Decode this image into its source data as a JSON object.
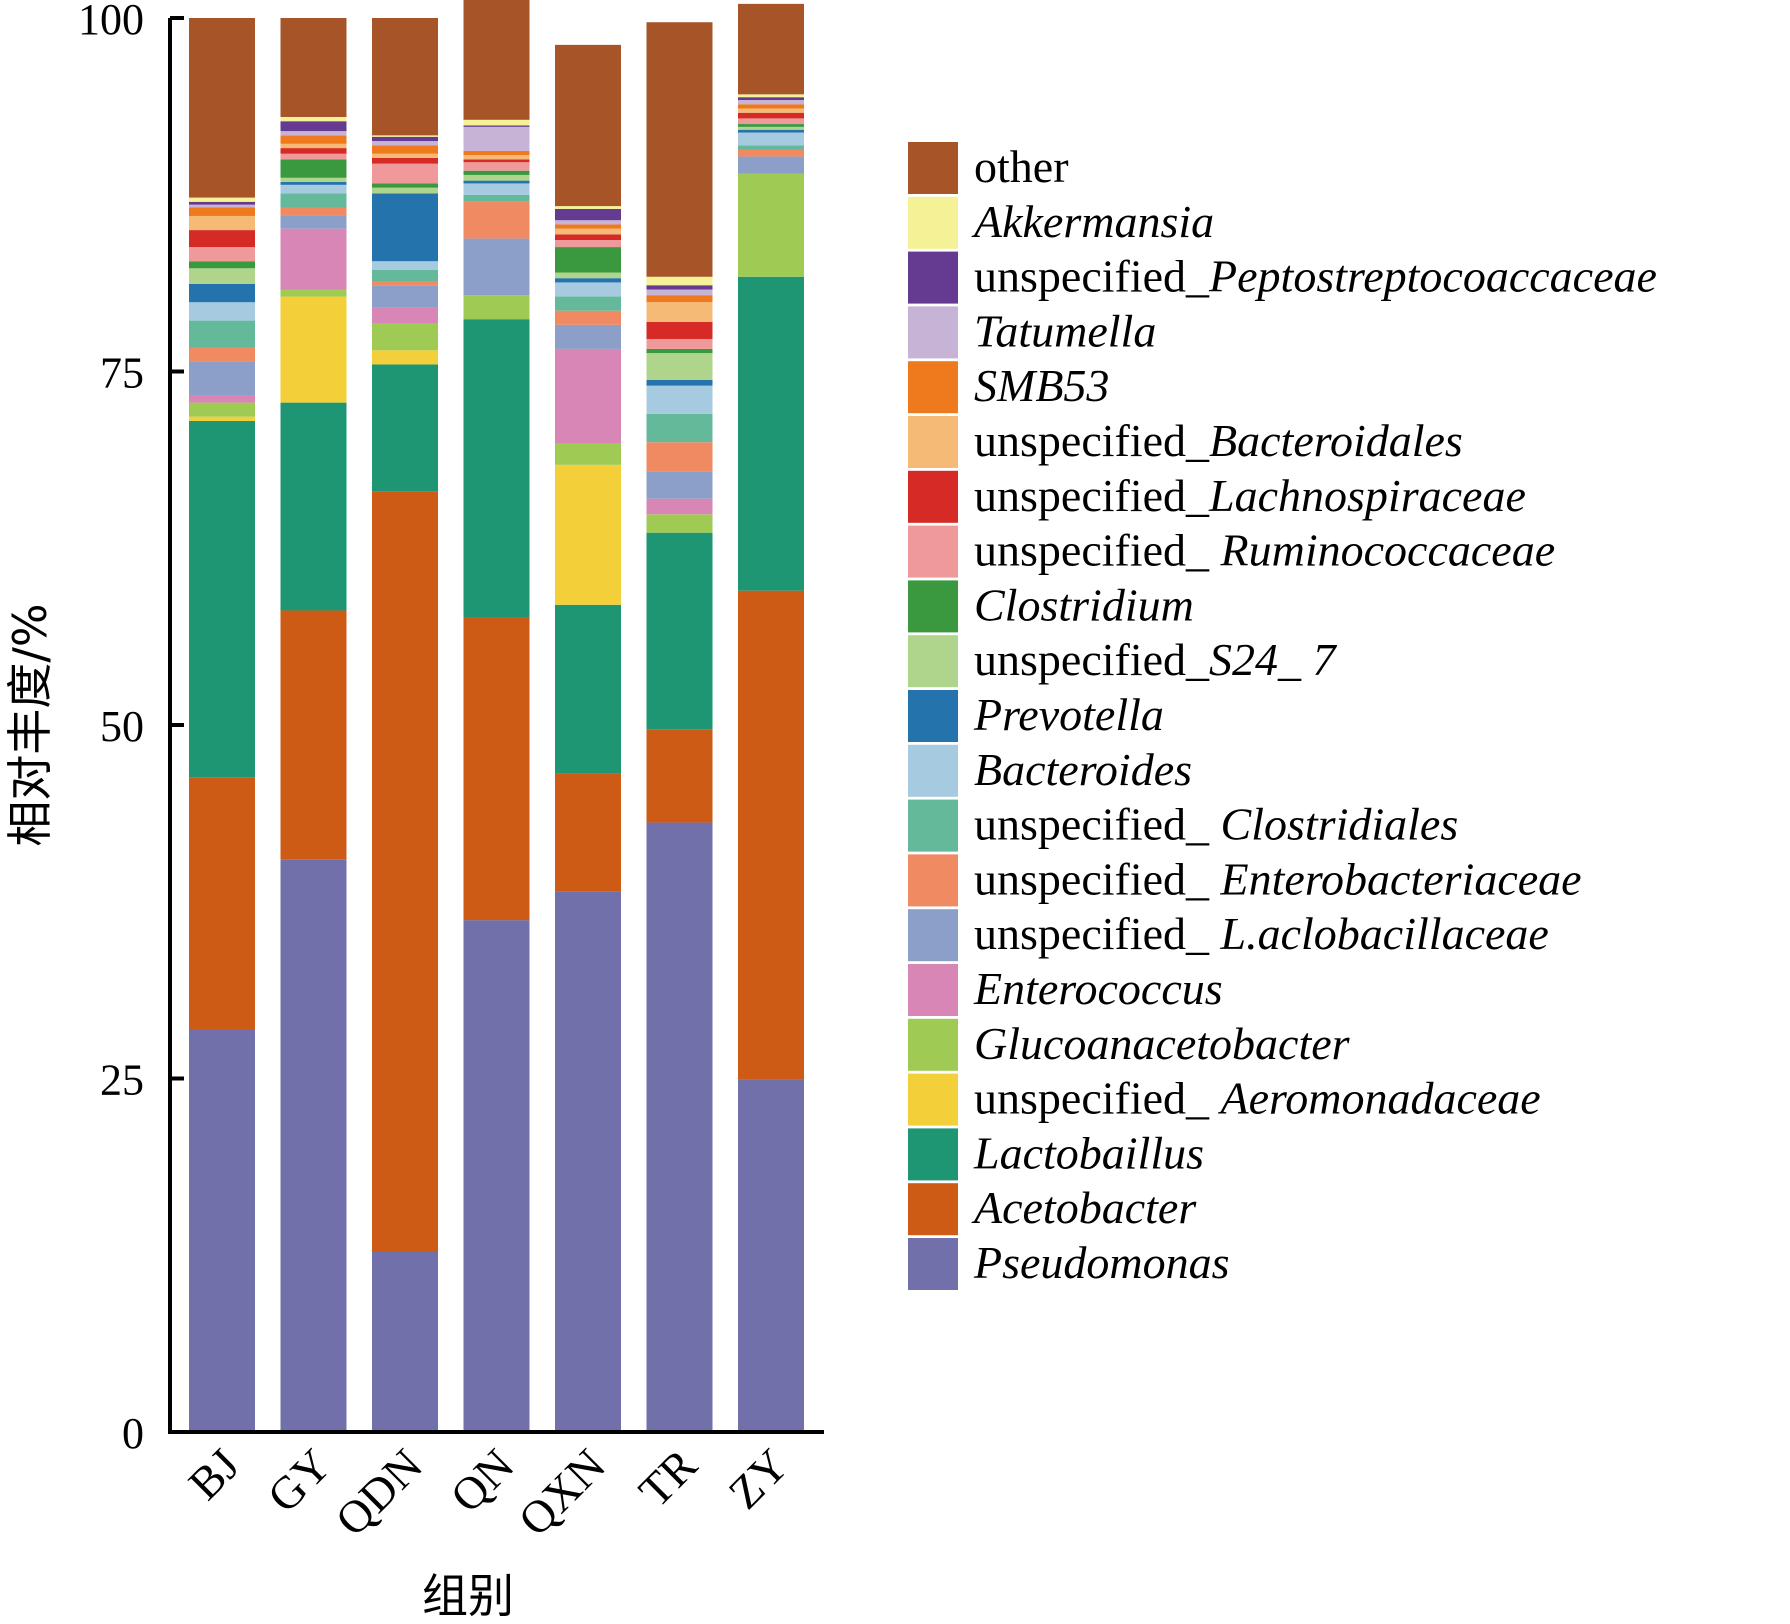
{
  "chart_data": {
    "type": "bar",
    "stacked": true,
    "ylabel": "相对丰度/%",
    "xlabel": "组别",
    "ylim": [
      0,
      100
    ],
    "yticks": [
      "0",
      "25",
      "50",
      "75",
      "100"
    ],
    "categories": [
      "BJ",
      "GY",
      "QDN",
      "QN",
      "QXN",
      "TR",
      "ZY"
    ],
    "legend_position": "right",
    "series": [
      {
        "name": "Pseudomonas",
        "italic": true,
        "color": "#7170aa",
        "values": [
          28.5,
          40.5,
          12.8,
          36.2,
          38.2,
          43.1,
          24.9
        ]
      },
      {
        "name": "Acetobacter",
        "italic": true,
        "color": "#cd5b16",
        "values": [
          17.8,
          17.6,
          53.7,
          21.4,
          8.4,
          6.6,
          34.6
        ]
      },
      {
        "name": "Lactobaillus",
        "italic": true,
        "color": "#1e9673",
        "values": [
          25.2,
          14.7,
          9.0,
          21.1,
          11.9,
          13.9,
          22.2
        ]
      },
      {
        "name": "unspecified_ Aeromonadaceae",
        "italic": false,
        "prefix": "unspecified_ ",
        "suffix": "Aeromonadaceae",
        "color": "#f3d03a",
        "values": [
          0.3,
          7.5,
          1.0,
          0,
          9.9,
          0,
          0
        ]
      },
      {
        "name": "Glucoanacetobacter",
        "italic": true,
        "color": "#9fca54",
        "values": [
          1.0,
          0.5,
          1.9,
          1.7,
          1.5,
          1.3,
          7.3
        ]
      },
      {
        "name": "Enterococcus",
        "italic": true,
        "color": "#d886b6",
        "values": [
          0.5,
          4.3,
          1.1,
          0,
          6.7,
          1.1,
          0
        ]
      },
      {
        "name": "unspecified_ L.aclobacillaceae",
        "italic": false,
        "prefix": "unspecified_ ",
        "suffix": "L.aclobacillaceae",
        "color": "#8c9fc8",
        "values": [
          2.4,
          0.9,
          1.6,
          4.0,
          1.7,
          1.9,
          1.2
        ]
      },
      {
        "name": "unspecified_ Enterobacteriaceae",
        "italic": false,
        "prefix": "unspecified_ ",
        "suffix": "Enterobacteriaceae",
        "color": "#ef8a62",
        "values": [
          1.0,
          0.6,
          0.3,
          2.6,
          1.0,
          2.1,
          0.5
        ]
      },
      {
        "name": "unspecified_ Clostridiales",
        "italic": false,
        "prefix": "unspecified_ ",
        "suffix": "Clostridiales",
        "color": "#64b99b",
        "values": [
          1.9,
          1.0,
          0.8,
          0.5,
          1.0,
          2.0,
          0.3
        ]
      },
      {
        "name": "Bacteroides",
        "italic": true,
        "color": "#a6cbe0",
        "values": [
          1.3,
          0.6,
          0.6,
          0.8,
          1.0,
          2.0,
          0.9
        ]
      },
      {
        "name": "Prevotella",
        "italic": true,
        "color": "#2573ad",
        "values": [
          1.3,
          0.2,
          4.8,
          0.2,
          0.3,
          0.4,
          0.2
        ]
      },
      {
        "name": "unspecified_S24_ 7",
        "italic": false,
        "prefix": "unspecified_",
        "suffix": "S24_ 7",
        "color": "#afd58d",
        "values": [
          1.1,
          0.3,
          0.4,
          0.4,
          0.4,
          1.9,
          0.2
        ]
      },
      {
        "name": "Clostridium",
        "italic": true,
        "color": "#3a993f",
        "values": [
          0.5,
          1.3,
          0.3,
          0.3,
          1.8,
          0.3,
          0.2
        ]
      },
      {
        "name": "unspecified_ Ruminococcaceae",
        "italic": false,
        "prefix": "unspecified_ ",
        "suffix": "Ruminococcaceae",
        "color": "#f0999a",
        "values": [
          1.0,
          0.4,
          1.4,
          0.6,
          0.5,
          0.7,
          0.4
        ]
      },
      {
        "name": "unspecified_Lachnospiraceae",
        "italic": false,
        "prefix": "unspecified_",
        "suffix": "Lachnospiraceae",
        "color": "#d52a26",
        "values": [
          1.2,
          0.4,
          0.4,
          0.2,
          0.4,
          1.2,
          0.4
        ]
      },
      {
        "name": "unspecified_Bacteroidales",
        "italic": false,
        "prefix": "unspecified_",
        "suffix": "Bacteroidales",
        "color": "#f5bb76",
        "values": [
          1.0,
          0.3,
          0.3,
          0.3,
          0.4,
          1.4,
          0.3
        ]
      },
      {
        "name": "SMB53",
        "italic": true,
        "color": "#ef7a1e",
        "values": [
          0.6,
          0.6,
          0.6,
          0.3,
          0.3,
          0.5,
          0.3
        ]
      },
      {
        "name": "Tatumella",
        "italic": true,
        "color": "#c6b3d6",
        "values": [
          0.2,
          0.3,
          0.3,
          1.7,
          0.3,
          0.4,
          0.3
        ]
      },
      {
        "name": "unspecified_Peptostreptocoaccaceae",
        "italic": false,
        "prefix": "unspecified_",
        "suffix": "Peptostreptocoaccaceae",
        "color": "#653b92",
        "values": [
          0.2,
          0.7,
          0.3,
          0.1,
          0.8,
          0.3,
          0.2
        ]
      },
      {
        "name": "Akkermansia",
        "italic": true,
        "color": "#f4f196",
        "values": [
          0.3,
          0.3,
          0.1,
          0.4,
          0.2,
          0.6,
          0.2
        ]
      },
      {
        "name": "other",
        "italic": false,
        "color": "#a75428",
        "values": [
          12.7,
          7.0,
          8.3,
          8.9,
          11.4,
          18.0,
          6.4
        ]
      }
    ]
  }
}
